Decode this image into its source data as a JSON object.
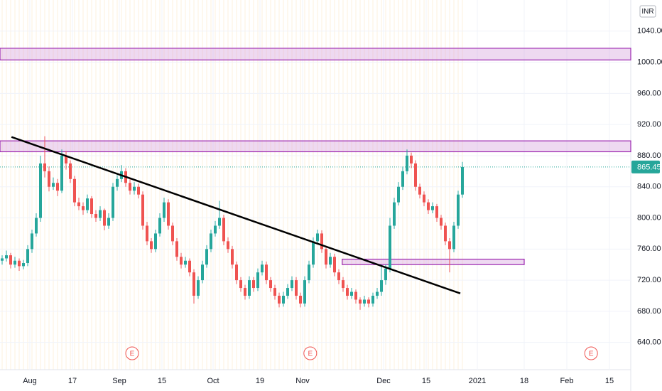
{
  "chart_data": {
    "type": "candlestick",
    "currency": "INR",
    "ohlc": [
      [
        745,
        752,
        740,
        748
      ],
      [
        748,
        758,
        744,
        752
      ],
      [
        752,
        755,
        735,
        740
      ],
      [
        740,
        750,
        736,
        745
      ],
      [
        745,
        748,
        732,
        738
      ],
      [
        738,
        746,
        734,
        742
      ],
      [
        742,
        765,
        738,
        760
      ],
      [
        760,
        785,
        755,
        780
      ],
      [
        780,
        806,
        776,
        800
      ],
      [
        800,
        880,
        795,
        870
      ],
      [
        870,
        905,
        852,
        860
      ],
      [
        860,
        866,
        834,
        840
      ],
      [
        840,
        852,
        836,
        845
      ],
      [
        845,
        850,
        828,
        835
      ],
      [
        835,
        888,
        832,
        880
      ],
      [
        880,
        886,
        862,
        870
      ],
      [
        870,
        874,
        845,
        850
      ],
      [
        850,
        854,
        815,
        820
      ],
      [
        820,
        826,
        810,
        815
      ],
      [
        815,
        820,
        804,
        810
      ],
      [
        810,
        830,
        806,
        825
      ],
      [
        825,
        828,
        800,
        805
      ],
      [
        805,
        810,
        795,
        800
      ],
      [
        800,
        815,
        796,
        810
      ],
      [
        810,
        812,
        784,
        790
      ],
      [
        790,
        806,
        786,
        800
      ],
      [
        800,
        845,
        796,
        840
      ],
      [
        840,
        855,
        835,
        850
      ],
      [
        850,
        868,
        846,
        860
      ],
      [
        860,
        864,
        840,
        845
      ],
      [
        845,
        850,
        830,
        835
      ],
      [
        835,
        846,
        830,
        840
      ],
      [
        840,
        844,
        825,
        830
      ],
      [
        830,
        834,
        785,
        790
      ],
      [
        790,
        795,
        765,
        770
      ],
      [
        770,
        774,
        755,
        760
      ],
      [
        760,
        785,
        756,
        780
      ],
      [
        780,
        806,
        776,
        800
      ],
      [
        800,
        826,
        795,
        820
      ],
      [
        820,
        824,
        785,
        790
      ],
      [
        790,
        794,
        765,
        770
      ],
      [
        770,
        774,
        745,
        750
      ],
      [
        750,
        755,
        735,
        740
      ],
      [
        740,
        750,
        736,
        745
      ],
      [
        745,
        748,
        725,
        730
      ],
      [
        730,
        734,
        690,
        700
      ],
      [
        700,
        725,
        696,
        720
      ],
      [
        720,
        745,
        716,
        740
      ],
      [
        740,
        765,
        736,
        760
      ],
      [
        760,
        785,
        756,
        780
      ],
      [
        780,
        796,
        776,
        790
      ],
      [
        790,
        822,
        786,
        800
      ],
      [
        800,
        804,
        765,
        770
      ],
      [
        770,
        775,
        755,
        760
      ],
      [
        760,
        764,
        735,
        740
      ],
      [
        740,
        744,
        715,
        720
      ],
      [
        720,
        724,
        705,
        710
      ],
      [
        710,
        714,
        695,
        700
      ],
      [
        700,
        725,
        696,
        720
      ],
      [
        720,
        724,
        705,
        710
      ],
      [
        710,
        735,
        706,
        730
      ],
      [
        730,
        745,
        726,
        740
      ],
      [
        740,
        744,
        715,
        720
      ],
      [
        720,
        724,
        705,
        710
      ],
      [
        710,
        714,
        695,
        700
      ],
      [
        700,
        704,
        685,
        690
      ],
      [
        690,
        705,
        686,
        700
      ],
      [
        700,
        715,
        696,
        710
      ],
      [
        710,
        725,
        706,
        720
      ],
      [
        720,
        724,
        695,
        700
      ],
      [
        700,
        704,
        685,
        690
      ],
      [
        690,
        725,
        686,
        720
      ],
      [
        720,
        745,
        716,
        740
      ],
      [
        740,
        775,
        736,
        770
      ],
      [
        770,
        785,
        766,
        780
      ],
      [
        780,
        784,
        755,
        760
      ],
      [
        760,
        764,
        735,
        740
      ],
      [
        740,
        755,
        736,
        750
      ],
      [
        750,
        754,
        725,
        730
      ],
      [
        730,
        734,
        715,
        720
      ],
      [
        720,
        724,
        705,
        710
      ],
      [
        710,
        714,
        695,
        700
      ],
      [
        700,
        710,
        696,
        705
      ],
      [
        705,
        708,
        690,
        695
      ],
      [
        695,
        698,
        682,
        690
      ],
      [
        690,
        700,
        686,
        695
      ],
      [
        695,
        698,
        685,
        690
      ],
      [
        690,
        704,
        686,
        700
      ],
      [
        700,
        710,
        696,
        705
      ],
      [
        705,
        740,
        700,
        720
      ],
      [
        720,
        740,
        714,
        735
      ],
      [
        735,
        800,
        730,
        790
      ],
      [
        790,
        826,
        786,
        820
      ],
      [
        820,
        846,
        816,
        840
      ],
      [
        840,
        866,
        836,
        860
      ],
      [
        860,
        888,
        856,
        880
      ],
      [
        880,
        884,
        864,
        870
      ],
      [
        870,
        874,
        835,
        840
      ],
      [
        840,
        844,
        825,
        830
      ],
      [
        830,
        834,
        815,
        820
      ],
      [
        820,
        824,
        805,
        810
      ],
      [
        810,
        820,
        806,
        815
      ],
      [
        815,
        818,
        795,
        800
      ],
      [
        800,
        804,
        785,
        790
      ],
      [
        790,
        794,
        765,
        770
      ],
      [
        770,
        774,
        730,
        760
      ],
      [
        760,
        795,
        756,
        790
      ],
      [
        790,
        835,
        786,
        830
      ],
      [
        830,
        872,
        826,
        865.45
      ]
    ],
    "up_color": "#26a69a",
    "down_color": "#ef5350",
    "last_price": 865.45,
    "zones": [
      {
        "low": 1003,
        "high": 1018,
        "x0": 0,
        "x1": 148
      },
      {
        "low": 885,
        "high": 899,
        "x0": 0,
        "x1": 148
      },
      {
        "low": 740,
        "high": 747,
        "x0": 80.3,
        "x1": 123
      }
    ],
    "trendline": {
      "x0": 2.7,
      "y0": 904,
      "x1": 108,
      "y1": 703
    },
    "events": [
      {
        "x": 31,
        "label": "E"
      },
      {
        "x": 72.8,
        "label": "E"
      },
      {
        "x": 138.7,
        "label": "E"
      }
    ],
    "xlim": [
      0,
      148
    ],
    "xticks": [
      {
        "value": 7,
        "label": "Aug"
      },
      17,
      {
        "value": 28,
        "label": "Sep"
      },
      {
        "value": 38,
        "label": "15"
      },
      {
        "value": 50,
        "label": "Oct"
      },
      {
        "value": 61,
        "label": "19"
      },
      {
        "value": 71,
        "label": "Nov"
      },
      {
        "value": 90,
        "label": "Dec"
      },
      {
        "value": 100,
        "label": "15"
      },
      {
        "value": 112,
        "label": "2021"
      },
      {
        "value": 123,
        "label": "18"
      },
      {
        "value": 133,
        "label": "Feb"
      },
      {
        "value": 143,
        "label": "15"
      }
    ],
    "ylim": [
      605,
      1080
    ],
    "yticks": [
      {
        "value": 640,
        "label": "640.00"
      },
      {
        "value": 680,
        "label": "680.00"
      },
      {
        "value": 720,
        "label": "720.00"
      },
      {
        "value": 760,
        "label": "760.00"
      },
      {
        "value": 800,
        "label": "800.00"
      },
      {
        "value": 840,
        "label": "840.00"
      },
      {
        "value": 880,
        "label": "880.00"
      },
      {
        "value": 920,
        "label": "920.00"
      },
      {
        "value": 960,
        "label": "960.00"
      },
      {
        "value": 1000,
        "label": "1000.00"
      },
      {
        "value": 1040,
        "label": "1040.00"
      }
    ],
    "grid": true
  }
}
